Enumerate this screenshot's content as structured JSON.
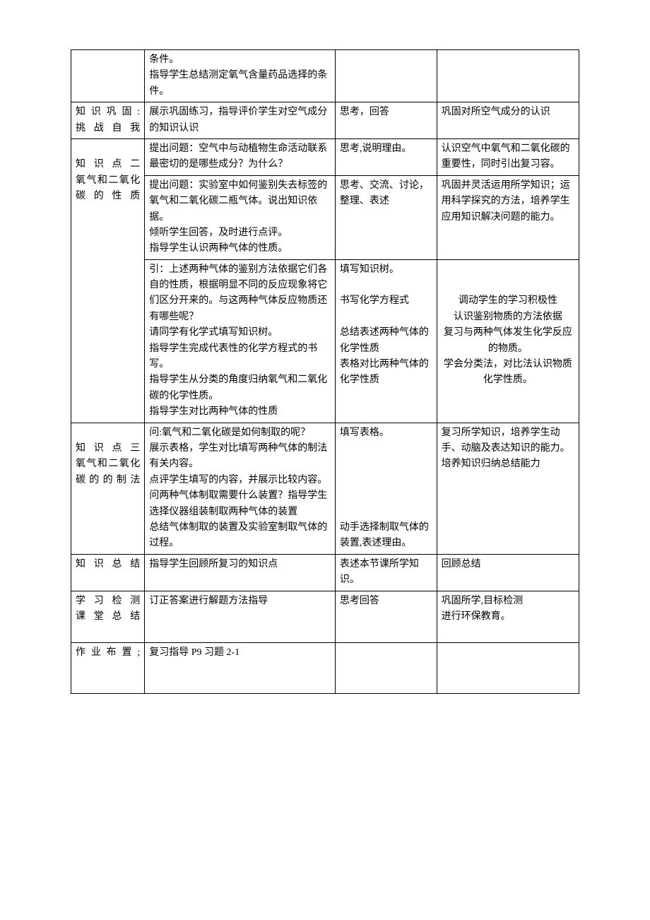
{
  "table": {
    "rows": [
      {
        "col1": "",
        "col2": "条件。\n指导学生总结测定氧气含量药品选择的条件。",
        "col3": "",
        "col4": ""
      },
      {
        "col1": "知识巩固:\n挑战自我",
        "col2": "展示巩固练习，指导评价学生对空气成分的知识认识",
        "col3": "思考，回答",
        "col4": "巩固对所空气成分的认识"
      },
      {
        "col1": "知识点二\n氧气和二氧化碳的性质",
        "col1_rowspan": 3,
        "col2": "提出问题：空气中与动植物生命活动联系最密切的是哪些成分？为什么？",
        "col3": "思考,说明理由。",
        "col4": "认识空气中氧气和二氧化碳的重要性，同时引出复习容。"
      },
      {
        "col2": "提出问题：实验室中如何鉴别失去标签的氧气和二氧化碳二瓶气体。说出知识依据。\n倾听学生回答，及时进行点评。\n指导学生认识两种气体的性质。",
        "col3": "思考、交流、讨论，整理、表述",
        "col4": "巩固并灵活运用所学知识；运用科学探究的方法，培养学生应用知识解决问题的能力。"
      },
      {
        "col2": "引：上述两种气体的鉴别方法依据它们各自的性质，根据明显不同的反应现象将它们区分开来的。与这两种气体反应物质还有哪些呢？\n请同学有化学式填写知识树。\n指导学生完成代表性的化学方程式的书写。\n指导学生从分类的角度归纳氧气和二氧化碳的化学性质。\n指导学生对比两种气体的性质",
        "col3": "填写知识树。\n\n书写化学方程式\n\n总结表述两种气体的化学性质\n表格对比两种气体的化学性质",
        "col4": "调动学生的学习积极性\n认识鉴别物质的方法依据\n复习与两种气体发生化学反应的物质。\n学会分类法，对比法认识物质化学性质。",
        "col4_center": true
      },
      {
        "col1": "知识点三\n氧气和二氧化碳的的制法",
        "col2": "问:氧气和二氧化碳是如何制取的呢？\n展示表格，学生对比填写两种气体的制法有关内容。\n点评学生填写的内容，并展示比较内容。\n问两种气体制取需要什么装置？指导学生选择仪器组装制取两种气体的装置\n总结气体制取的装置及实验室制取气体的过程。",
        "col3": "填写表格。\n\n\n\n\n\n动手选择制取气体的装置,表述理由。",
        "col4": "复习所学知识，培养学生动手、动脑及表达知识的能力。培养知识归纳总结能力"
      },
      {
        "col1": "知识总结",
        "col2": "指导学生回顾所复习的知识点",
        "col3": "表述本节课所学知识。",
        "col4": "回顾总结"
      },
      {
        "col1": "学习检测\n课堂总结",
        "col2": "订正答案进行解题方法指导",
        "col3": "思考回答",
        "col4": "巩固所学,目标检测\n进行环保教育。",
        "extra_height": true
      },
      {
        "col1": "作业布置;",
        "col2": "复习指导 P9 习题 2-1",
        "col3": "",
        "col4": "",
        "extra_height": true
      }
    ]
  }
}
